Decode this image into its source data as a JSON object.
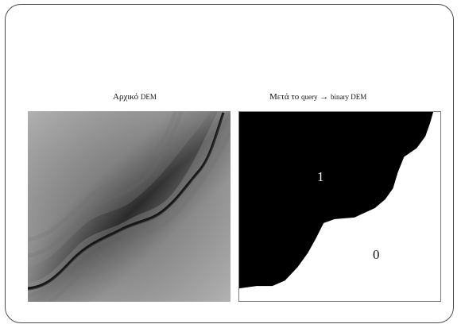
{
  "panels": {
    "original": {
      "caption_prefix": "Αρχικό",
      "caption_suffix": "DEM"
    },
    "binary": {
      "caption_prefix": "Μετά το",
      "caption_query": "query",
      "caption_arrow": "→",
      "caption_suffix": "binary DEM",
      "label_one": "1",
      "label_zero": "0"
    }
  },
  "colors": {
    "frame": "#4a4a4a",
    "dem_light": "#d8d8d8",
    "dem_dark": "#111111",
    "binary_fill": "#000000",
    "binary_background": "#ffffff"
  }
}
